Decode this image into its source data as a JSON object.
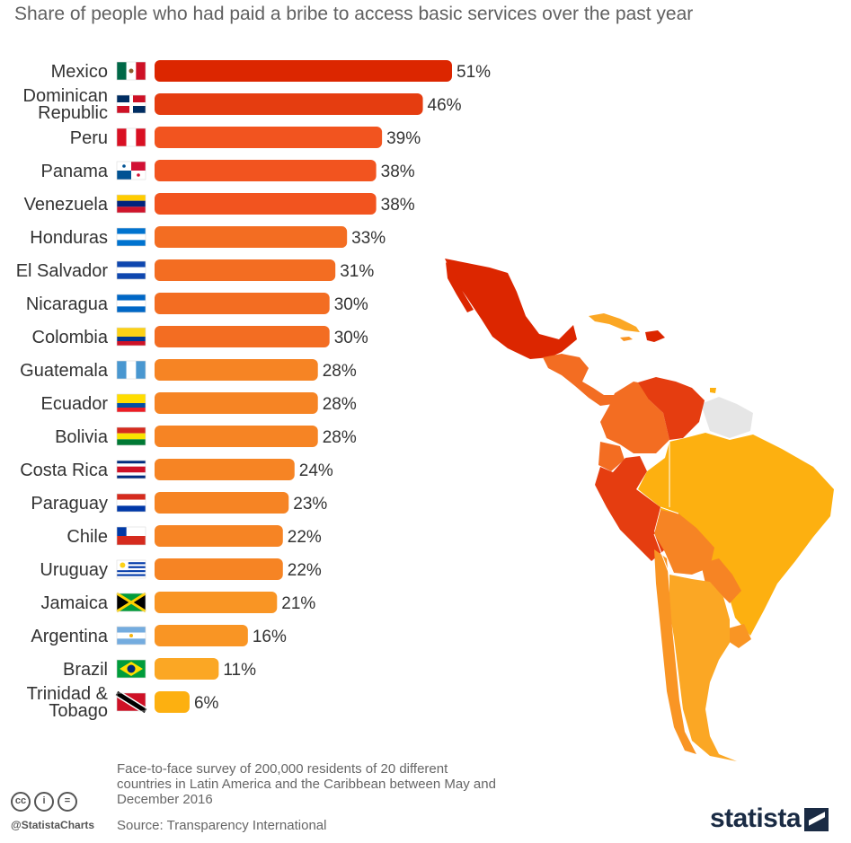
{
  "title": "Share of people who had paid a bribe to access basic services over the past year",
  "footer": {
    "note": "Face-to-face survey of 200,000 residents of 20 different countries in Latin America and the Caribbean between May and December 2016",
    "source": "Source: Transparency International",
    "handle": "@StatistaCharts",
    "brand": "statista"
  },
  "colors": {
    "scale": [
      "#dc2600",
      "#e53d10",
      "#f2541f",
      "#f36d22",
      "#f68424",
      "#f99524",
      "#fba724",
      "#fdb010"
    ],
    "map_unknown": "#e6e6e6"
  },
  "chart_data": {
    "type": "bar",
    "orientation": "horizontal",
    "title": "Share of people who had paid a bribe to access basic services over the past year",
    "value_suffix": "%",
    "categories": [
      "Mexico",
      "Dominican Republic",
      "Peru",
      "Panama",
      "Venezuela",
      "Honduras",
      "El Salvador",
      "Nicaragua",
      "Colombia",
      "Guatemala",
      "Ecuador",
      "Bolivia",
      "Costa Rica",
      "Paraguay",
      "Chile",
      "Uruguay",
      "Jamaica",
      "Argentina",
      "Brazil",
      "Trinidad & Tobago"
    ],
    "category_lines": [
      [
        "Mexico"
      ],
      [
        "Dominican",
        "Republic"
      ],
      [
        "Peru"
      ],
      [
        "Panama"
      ],
      [
        "Venezuela"
      ],
      [
        "Honduras"
      ],
      [
        "El Salvador"
      ],
      [
        "Nicaragua"
      ],
      [
        "Colombia"
      ],
      [
        "Guatemala"
      ],
      [
        "Ecuador"
      ],
      [
        "Bolivia"
      ],
      [
        "Costa Rica"
      ],
      [
        "Paraguay"
      ],
      [
        "Chile"
      ],
      [
        "Uruguay"
      ],
      [
        "Jamaica"
      ],
      [
        "Argentina"
      ],
      [
        "Brazil"
      ],
      [
        "Trinidad &",
        "Tobago"
      ]
    ],
    "values": [
      51,
      46,
      39,
      38,
      38,
      33,
      31,
      30,
      30,
      28,
      28,
      28,
      24,
      23,
      22,
      22,
      21,
      16,
      11,
      6
    ],
    "flags": [
      "mexico-flag-icon",
      "dominican-republic-flag-icon",
      "peru-flag-icon",
      "panama-flag-icon",
      "venezuela-flag-icon",
      "honduras-flag-icon",
      "el-salvador-flag-icon",
      "nicaragua-flag-icon",
      "colombia-flag-icon",
      "guatemala-flag-icon",
      "ecuador-flag-icon",
      "bolivia-flag-icon",
      "costa-rica-flag-icon",
      "paraguay-flag-icon",
      "chile-flag-icon",
      "uruguay-flag-icon",
      "jamaica-flag-icon",
      "argentina-flag-icon",
      "brazil-flag-icon",
      "trinidad-tobago-flag-icon"
    ],
    "xlim": [
      0,
      51
    ],
    "grid": false,
    "legend": "none"
  }
}
